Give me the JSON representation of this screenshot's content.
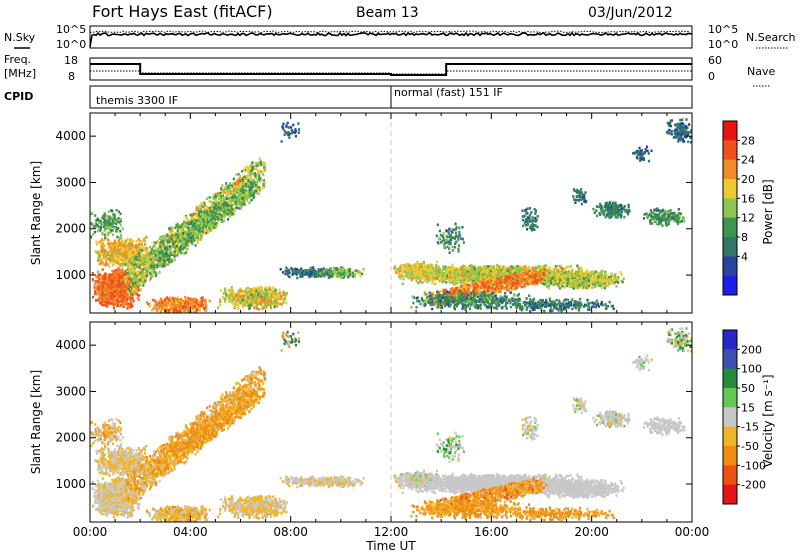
{
  "header": {
    "station": "Fort Hays East (fitACF)",
    "beam": "Beam 13",
    "date": "03/Jun/2012"
  },
  "strip": {
    "nsky_label": "N.Sky",
    "nsky_ticks": [
      "10^5",
      "10^0"
    ],
    "nsearch_label": "N.Search",
    "nsearch_ticks": [
      "10^5",
      "10^0"
    ],
    "freq_label_1": "Freq.",
    "freq_label_2": "[MHz]",
    "freq_ticks": [
      "18",
      "8"
    ],
    "nave_label": "Nave",
    "nave_ticks": [
      "60",
      "0"
    ],
    "cpid_label": "CPID",
    "cpid_1": "themis 3300 IF",
    "cpid_2": "normal (fast) 151 IF"
  },
  "axes": {
    "ylabel": "Slant Range [km]",
    "y_ticks": [
      "1000",
      "2000",
      "3000",
      "4000"
    ],
    "xlabel": "Time UT",
    "x_ticks": [
      "00:00",
      "04:00",
      "08:00",
      "12:00",
      "16:00",
      "20:00",
      "00:00"
    ]
  },
  "power_cb": {
    "label": "Power [dB]",
    "ticks": [
      "28",
      "24",
      "20",
      "16",
      "12",
      "8",
      "4"
    ],
    "colors": [
      "#e81414",
      "#f0501e",
      "#f08c28",
      "#f0c832",
      "#8cc850",
      "#3c9650",
      "#327864",
      "#2846a0",
      "#1e1ee6"
    ]
  },
  "velocity_cb": {
    "label": "Velocity [m s⁻¹]",
    "ticks": [
      "200",
      "100",
      "50",
      "15",
      "-15",
      "-50",
      "-100",
      "-200"
    ],
    "colors": [
      "#2828c8",
      "#3c50b4",
      "#228b3c",
      "#64c850",
      "#c8c8c8",
      "#f0b428",
      "#f08c14",
      "#f05014",
      "#e61414"
    ]
  },
  "chart_data": [
    {
      "type": "heatmap",
      "title": "Power [dB]",
      "x_range_hours": [
        0,
        24
      ],
      "y_range_km": [
        180,
        4500
      ],
      "echo_regions": [
        {
          "t": [
            0.1,
            2.5
          ],
          "r": [
            300,
            1900
          ],
          "level": 24
        },
        {
          "t": [
            1.2,
            6.8
          ],
          "r": [
            800,
            3300
          ],
          "level": 15
        },
        {
          "t": [
            6.5,
            9.5
          ],
          "r": [
            200,
            700
          ],
          "level": 8
        },
        {
          "t": [
            12.0,
            20.5
          ],
          "r": [
            400,
            1300
          ],
          "level": 20
        },
        {
          "t": [
            16.0,
            22.5
          ],
          "r": [
            2000,
            3000
          ],
          "level": 8
        },
        {
          "t": [
            21.0,
            24.0
          ],
          "r": [
            3300,
            4400
          ],
          "level": 8
        }
      ]
    },
    {
      "type": "heatmap",
      "title": "Velocity [m s-1]",
      "x_range_hours": [
        0,
        24
      ],
      "y_range_km": [
        180,
        4500
      ],
      "echo_regions": [
        {
          "t": [
            0.0,
            7.0
          ],
          "r": [
            300,
            3300
          ],
          "velocity": -50
        },
        {
          "t": [
            12.0,
            24.0
          ],
          "r": [
            200,
            700
          ],
          "velocity": -60
        },
        {
          "t": [
            12.0,
            22.0
          ],
          "r": [
            600,
            1300
          ],
          "velocity": 0
        }
      ]
    }
  ]
}
